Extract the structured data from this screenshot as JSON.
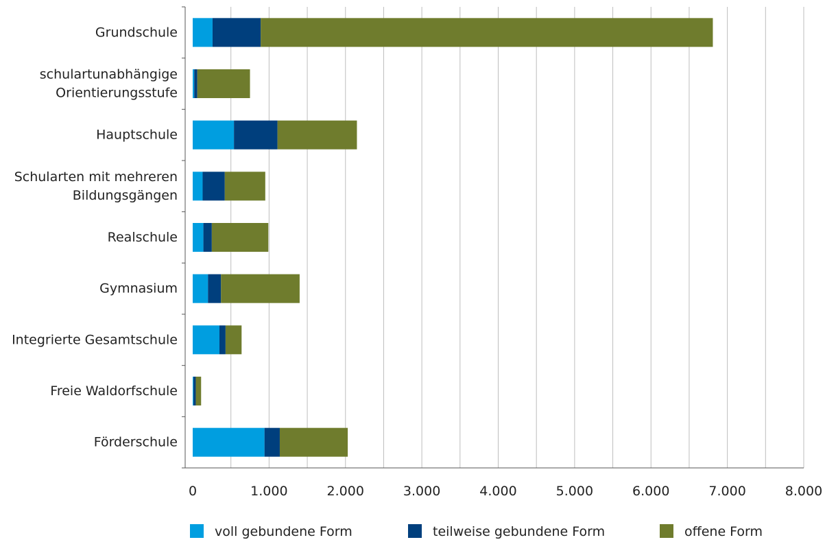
{
  "chart_data": {
    "type": "bar",
    "orientation": "horizontal",
    "stacked": true,
    "title": "",
    "xlabel": "",
    "ylabel": "",
    "xlim": [
      0,
      8000
    ],
    "x_ticks": [
      0,
      1000,
      2000,
      3000,
      4000,
      5000,
      6000,
      7000,
      8000
    ],
    "x_tick_labels": [
      "0",
      "1.000",
      "2.000",
      "3.000",
      "4.000",
      "5.000",
      "6.000",
      "7.000",
      "8.000"
    ],
    "grid": "vertical",
    "legend_position": "bottom",
    "categories": [
      [
        "Grundschule"
      ],
      [
        "schulartunabhängige",
        "Orientierungsstufe"
      ],
      [
        "Hauptschule"
      ],
      [
        "Schularten mit mehreren",
        "Bildungsgängen"
      ],
      [
        "Realschule"
      ],
      [
        "Gymnasium"
      ],
      [
        "Integrierte Gesamtschule"
      ],
      [
        "Freie Waldorfschule"
      ],
      [
        "Förderschule"
      ]
    ],
    "series": [
      {
        "name": "voll gebundene Form",
        "color": "#009ee0",
        "values": [
          260,
          20,
          540,
          130,
          140,
          200,
          350,
          10,
          940
        ]
      },
      {
        "name": "teilweise gebundene Form",
        "color": "#003f7d",
        "values": [
          630,
          40,
          570,
          290,
          110,
          170,
          80,
          30,
          200
        ]
      },
      {
        "name": "offene Form",
        "color": "#6f7c2d",
        "values": [
          5920,
          690,
          1040,
          530,
          740,
          1030,
          210,
          70,
          890
        ]
      }
    ]
  }
}
